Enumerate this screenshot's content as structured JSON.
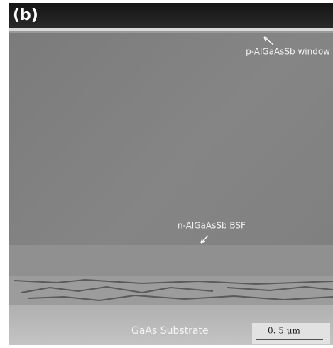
{
  "panel_label": "(b)",
  "annotations": {
    "window": "p-AlGaAsSb window",
    "bsf": "n-AlGaAsSb BSF",
    "substrate": "GaAs Substrate"
  },
  "scale_bar": "0. 5 μm"
}
